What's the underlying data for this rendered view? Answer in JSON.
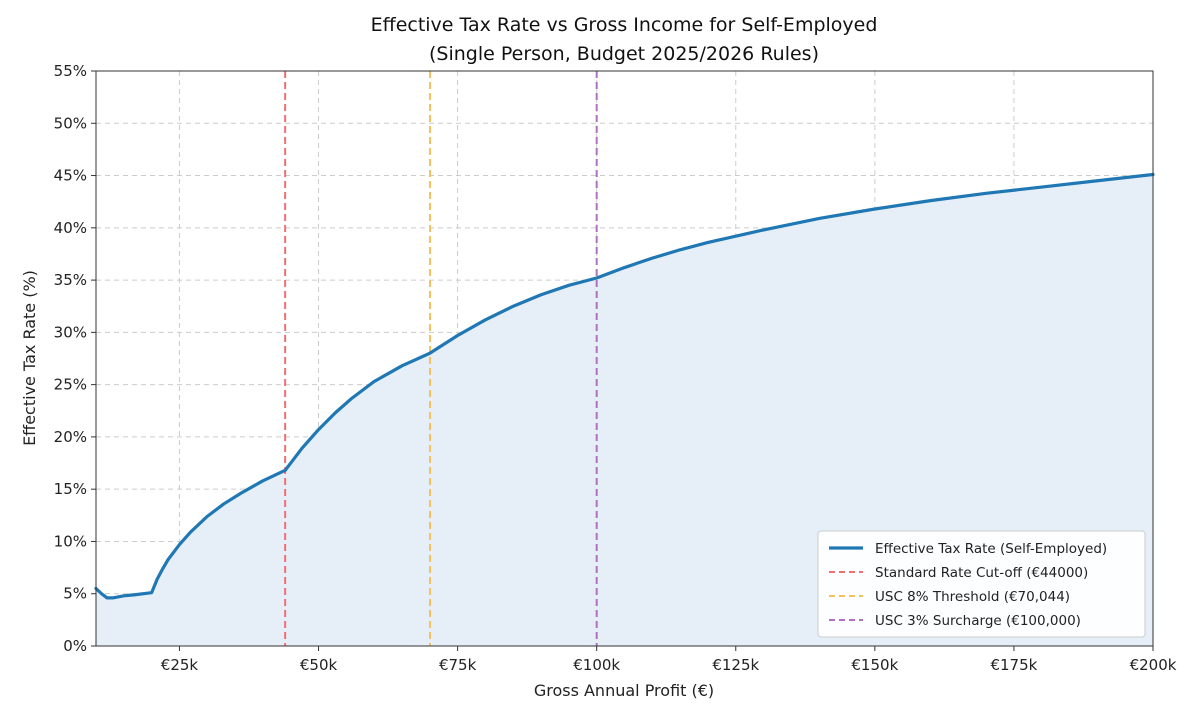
{
  "chart_data": {
    "type": "line",
    "title": "Effective Tax Rate vs Gross Income for Self-Employed",
    "subtitle": "(Single Person, Budget 2025/2026 Rules)",
    "xlabel": "Gross Annual Profit (€)",
    "ylabel": "Effective Tax Rate (%)",
    "xlim": [
      10000,
      200000
    ],
    "ylim": [
      0,
      55
    ],
    "x_ticks": [
      25000,
      50000,
      75000,
      100000,
      125000,
      150000,
      175000,
      200000
    ],
    "x_tick_labels": [
      "€25k",
      "€50k",
      "€75k",
      "€100k",
      "€125k",
      "€150k",
      "€175k",
      "€200k"
    ],
    "y_ticks": [
      0,
      5,
      10,
      15,
      20,
      25,
      30,
      35,
      40,
      45,
      50,
      55
    ],
    "y_tick_labels": [
      "0%",
      "5%",
      "10%",
      "15%",
      "20%",
      "25%",
      "30%",
      "35%",
      "40%",
      "45%",
      "50%",
      "55%"
    ],
    "grid": true,
    "legend_position": "lower-right",
    "series": [
      {
        "name": "Effective Tax Rate (Self-Employed)",
        "color": "#1f77b4",
        "fill_color": "#e6eff8",
        "x": [
          10000,
          11000,
          12000,
          13000,
          15000,
          17000,
          20000,
          21000,
          22000,
          23000,
          24000,
          25000,
          27000,
          30000,
          33000,
          36000,
          40000,
          44000,
          45000,
          47000,
          50000,
          53000,
          56000,
          60000,
          65000,
          70000,
          75000,
          80000,
          85000,
          90000,
          95000,
          100000,
          105000,
          110000,
          115000,
          120000,
          125000,
          130000,
          140000,
          150000,
          160000,
          170000,
          180000,
          190000,
          200000
        ],
        "y": [
          5.5,
          5.0,
          4.6,
          4.6,
          4.8,
          4.9,
          5.1,
          6.4,
          7.4,
          8.3,
          9.0,
          9.7,
          10.9,
          12.4,
          13.6,
          14.6,
          15.8,
          16.8,
          17.5,
          18.9,
          20.7,
          22.3,
          23.7,
          25.3,
          26.8,
          28.0,
          29.7,
          31.2,
          32.5,
          33.6,
          34.5,
          35.2,
          36.2,
          37.1,
          37.9,
          38.6,
          39.2,
          39.8,
          40.9,
          41.8,
          42.6,
          43.3,
          43.9,
          44.5,
          45.1
        ]
      }
    ],
    "reference_lines": [
      {
        "name": "Standard Rate Cut-off (€44000)",
        "x": 44000,
        "color": "#f07070"
      },
      {
        "name": "USC 8% Threshold (€70,044)",
        "x": 70044,
        "color": "#f5c060"
      },
      {
        "name": "USC 3% Surcharge (€100,000)",
        "x": 100000,
        "color": "#b070c0"
      }
    ]
  }
}
